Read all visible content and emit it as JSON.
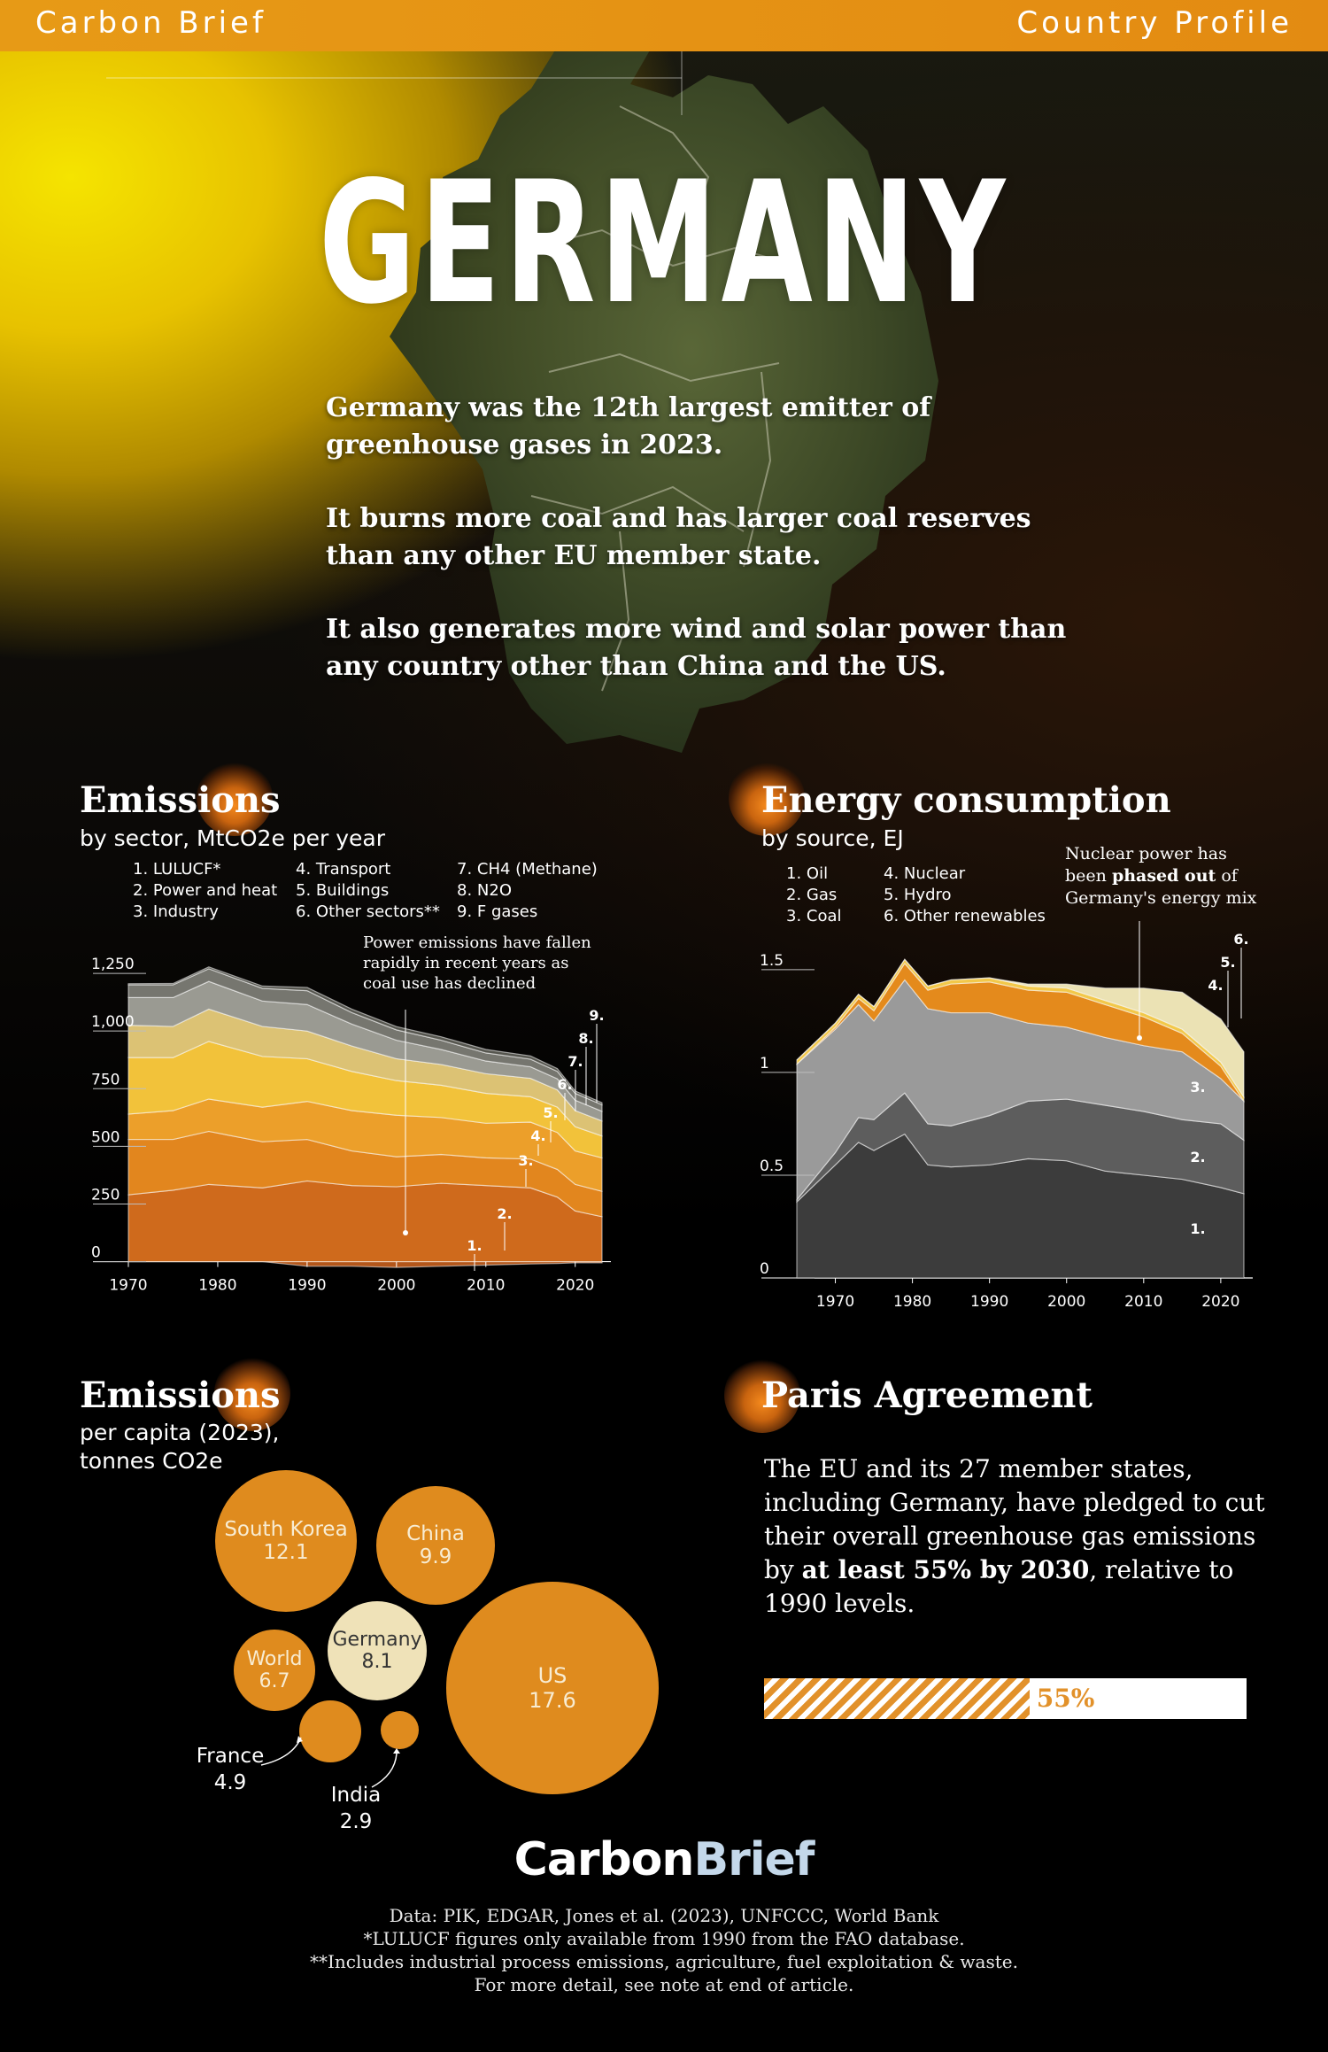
{
  "header": {
    "brand": "Carbon Brief",
    "profile": "Country Profile"
  },
  "title": "GERMANY",
  "intro": [
    "Germany was the 12th largest emitter of greenhouse gases in 2023.",
    "It burns more coal and has larger coal reserves than any other EU member state.",
    "It also generates more wind and solar power than any country other than China and the US."
  ],
  "emissions_sector": {
    "title": "Emissions",
    "subtitle": "by sector, MtCO2e per year",
    "legend": [
      "1. LULUCF*",
      "2. Power and heat",
      "3. Industry",
      "4. Transport",
      "5. Buildings",
      "6. Other sectors**",
      "7. CH4 (Methane)",
      "8. N2O",
      "9. F gases"
    ],
    "annotation": [
      "Power emissions have fallen",
      "rapidly in recent years as",
      "coal use has declined"
    ]
  },
  "energy": {
    "title": "Energy consumption",
    "subtitle": "by source, EJ",
    "legend": [
      "1. Oil",
      "2. Gas",
      "3. Coal",
      "4. Nuclear",
      "5. Hydro",
      "6. Other renewables"
    ],
    "annotation_plain_1": "Nuclear power has",
    "annotation_plain_2": "been ",
    "annotation_bold": "phased out",
    "annotation_plain_3": " of",
    "annotation_plain_4": "Germany's energy mix"
  },
  "chart_data": [
    {
      "type": "area",
      "stacked": true,
      "title": "Emissions",
      "subtitle": "by sector, MtCO2e per year",
      "x": [
        1970,
        1975,
        1979,
        1985,
        1990,
        1995,
        2000,
        2005,
        2010,
        2015,
        2018,
        2020,
        2023
      ],
      "xticks": [
        1970,
        1980,
        1990,
        2000,
        2010,
        2020
      ],
      "yticks": [
        0,
        250,
        500,
        750,
        1000,
        1250
      ],
      "yticklabels": [
        "0",
        "250",
        "500",
        "750",
        "1,000",
        "1,250"
      ],
      "ylim": [
        -40,
        1400
      ],
      "series": [
        {
          "name": "1. LULUCF*",
          "color": "#b3561a",
          "values": [
            0,
            0,
            0,
            0,
            -20,
            -20,
            -25,
            -20,
            -15,
            -10,
            -8,
            -5,
            -5
          ]
        },
        {
          "name": "2. Power and heat",
          "color": "#cf6a1c",
          "values": [
            290,
            310,
            335,
            320,
            350,
            330,
            325,
            340,
            330,
            320,
            280,
            220,
            195
          ]
        },
        {
          "name": "3. Industry",
          "color": "#e2861e",
          "values": [
            240,
            220,
            230,
            200,
            180,
            150,
            130,
            125,
            120,
            125,
            120,
            115,
            110
          ]
        },
        {
          "name": "4. Transport",
          "color": "#ec9f2a",
          "values": [
            110,
            125,
            140,
            150,
            165,
            175,
            180,
            160,
            150,
            160,
            160,
            145,
            145
          ]
        },
        {
          "name": "5. Buildings",
          "color": "#f2c23a",
          "values": [
            245,
            230,
            250,
            220,
            185,
            170,
            150,
            140,
            130,
            110,
            110,
            105,
            95
          ]
        },
        {
          "name": "6. Other sectors**",
          "color": "#dcc274",
          "values": [
            140,
            135,
            140,
            130,
            120,
            110,
            95,
            90,
            85,
            80,
            75,
            70,
            65
          ]
        },
        {
          "name": "7. CH4 (Methane)",
          "color": "#9a9a92",
          "values": [
            120,
            125,
            120,
            110,
            115,
            95,
            80,
            65,
            55,
            50,
            48,
            45,
            42
          ]
        },
        {
          "name": "8. N2O",
          "color": "#76766f",
          "values": [
            55,
            55,
            55,
            55,
            60,
            50,
            45,
            40,
            35,
            33,
            32,
            30,
            28
          ]
        },
        {
          "name": "9. F gases",
          "color": "#56564f",
          "values": [
            5,
            6,
            8,
            10,
            14,
            15,
            14,
            15,
            15,
            14,
            12,
            10,
            9
          ]
        }
      ]
    },
    {
      "type": "area",
      "stacked": true,
      "title": "Energy consumption",
      "subtitle": "by source, EJ",
      "x": [
        1965,
        1970,
        1973,
        1975,
        1979,
        1982,
        1985,
        1990,
        1995,
        2000,
        2005,
        2010,
        2015,
        2020,
        2023
      ],
      "xticks": [
        1970,
        1980,
        1990,
        2000,
        2010,
        2020
      ],
      "yticks": [
        0,
        0.5,
        1,
        1.5
      ],
      "yticklabels": [
        "0",
        "0.5",
        "1",
        "1.5"
      ],
      "ylim": [
        0,
        1.65
      ],
      "series": [
        {
          "name": "1. Oil",
          "color": "#3c3c3c",
          "values": [
            0.37,
            0.55,
            0.66,
            0.62,
            0.7,
            0.55,
            0.54,
            0.55,
            0.58,
            0.57,
            0.52,
            0.5,
            0.48,
            0.44,
            0.41
          ]
        },
        {
          "name": "2. Gas",
          "color": "#5d5d5d",
          "values": [
            0.01,
            0.06,
            0.12,
            0.15,
            0.2,
            0.2,
            0.2,
            0.24,
            0.28,
            0.3,
            0.32,
            0.31,
            0.29,
            0.31,
            0.26
          ]
        },
        {
          "name": "3. Coal",
          "color": "#9a9a9a",
          "values": [
            0.66,
            0.6,
            0.55,
            0.48,
            0.55,
            0.56,
            0.55,
            0.5,
            0.38,
            0.35,
            0.33,
            0.32,
            0.33,
            0.22,
            0.19
          ]
        },
        {
          "name": "4. Nuclear",
          "color": "#e48a1c",
          "values": [
            0.0,
            0.01,
            0.03,
            0.05,
            0.08,
            0.09,
            0.14,
            0.15,
            0.16,
            0.17,
            0.16,
            0.14,
            0.09,
            0.06,
            0.0
          ]
        },
        {
          "name": "5. Hydro",
          "color": "#f2c84a",
          "values": [
            0.02,
            0.02,
            0.02,
            0.02,
            0.02,
            0.02,
            0.02,
            0.02,
            0.02,
            0.02,
            0.02,
            0.02,
            0.02,
            0.02,
            0.02
          ]
        },
        {
          "name": "6. Other renewables",
          "color": "#ebe2b4",
          "values": [
            0.0,
            0.0,
            0.0,
            0.0,
            0.0,
            0.0,
            0.0,
            0.0,
            0.01,
            0.02,
            0.06,
            0.12,
            0.18,
            0.21,
            0.22
          ]
        }
      ]
    },
    {
      "type": "bubble",
      "title": "Emissions",
      "subtitle": "per capita (2023), tonnes CO2e",
      "items": [
        {
          "name": "South Korea",
          "value": "12.1"
        },
        {
          "name": "China",
          "value": "9.9"
        },
        {
          "name": "World",
          "value": "6.7"
        },
        {
          "name": "Germany",
          "value": "8.1"
        },
        {
          "name": "US",
          "value": "17.6"
        },
        {
          "name": "France",
          "value": "4.9"
        },
        {
          "name": "India",
          "value": "2.9"
        }
      ]
    }
  ],
  "per_capita": {
    "title": "Emissions",
    "subtitle_1": "per capita (2023),",
    "subtitle_2": "tonnes CO2e"
  },
  "paris": {
    "title": "Paris Agreement",
    "text_1": "The EU and its 27 member states, including Germany, have pledged to cut their overall greenhouse gas emissions by ",
    "text_bold": "at least 55% by 2030",
    "text_2": ", relative to 1990 levels.",
    "progress_value": 0.55,
    "progress_label": "55%"
  },
  "logo": {
    "part1": "Carbon",
    "part2": "Brief"
  },
  "footer": [
    "Data: PIK, EDGAR, Jones et al. (2023), UNFCCC, World Bank",
    "*LULUCF figures only available from 1990 from the FAO database.",
    "**Includes industrial process emissions, agriculture, fuel exploitation & waste.",
    "For more detail, see note at end of article."
  ],
  "colors": {
    "accent": "#e38b12",
    "bubble": "#df8b1e",
    "germany_bubble": "#efe2b8"
  }
}
